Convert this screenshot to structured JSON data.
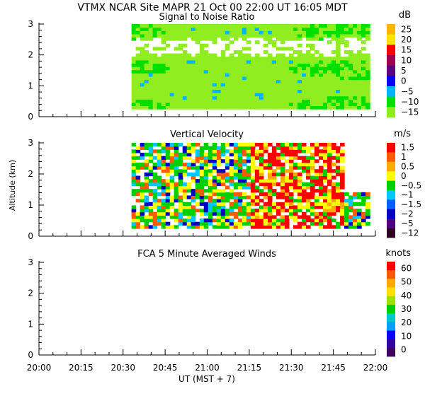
{
  "header": {
    "title": "VTMX  NCAR Site  MAPR 21 Oct 00  22:00 UT  16:05  MDT"
  },
  "x_axis": {
    "label": "UT  (MST + 7)",
    "ticks": [
      "20:00",
      "20:15",
      "20:30",
      "20:45",
      "21:00",
      "21:15",
      "21:30",
      "21:45",
      "22:00"
    ],
    "range_minutes": [
      0,
      120
    ]
  },
  "y_axis_label": "Altitude (km)",
  "chart_data": [
    {
      "type": "heatmap",
      "id": "snr",
      "title": "Signal to Noise Ratio",
      "ylim": [
        0,
        3
      ],
      "yticks": [
        "0",
        "1",
        "2",
        "3"
      ],
      "data_time_range_minutes": [
        33,
        118
      ],
      "data_alt_range_km": [
        0.25,
        3.0
      ],
      "colorbar": {
        "unit": "dB",
        "labels": [
          "25",
          "20",
          "15",
          "10",
          "5",
          "0",
          "−5",
          "−10",
          "−15"
        ],
        "colors": [
          "#ffb400",
          "#ffe400",
          "#ff0000",
          "#a00050",
          "#5a0080",
          "#0000ff",
          "#00b4ff",
          "#00e000",
          "#90ee20"
        ]
      }
    },
    {
      "type": "heatmap",
      "id": "velocity",
      "title": "Vertical Velocity",
      "ylim": [
        0,
        3
      ],
      "yticks": [
        "0",
        "1",
        "2",
        "3"
      ],
      "data_time_range_minutes": [
        33,
        118
      ],
      "data_alt_range_km": [
        0.25,
        3.0
      ],
      "colorbar": {
        "unit": "m/s",
        "labels": [
          "1.5",
          "1",
          "0.5",
          "0",
          "−0.5",
          "−1",
          "−1.5",
          "−2",
          "−5",
          "−12"
        ],
        "colors": [
          "#ff0000",
          "#ff5a00",
          "#ffaa00",
          "#ffff00",
          "#00d000",
          "#00c8ff",
          "#0060ff",
          "#0000c0",
          "#500080",
          "#300020"
        ]
      }
    },
    {
      "type": "heatmap",
      "id": "winds",
      "title": "FCA 5 Minute Averaged Winds",
      "ylim": [
        0,
        3
      ],
      "yticks": [
        "0",
        "1",
        "2",
        "3"
      ],
      "colorbar": {
        "unit": "knots",
        "labels": [
          "60",
          "50",
          "40",
          "30",
          "20",
          "10",
          "0"
        ],
        "colors": [
          "#ff0000",
          "#ff5a00",
          "#ffaa00",
          "#ffe000",
          "#a0e000",
          "#00d000",
          "#00c8c8",
          "#00a0ff",
          "#0000ff",
          "#3000a0",
          "#400060"
        ]
      }
    }
  ]
}
